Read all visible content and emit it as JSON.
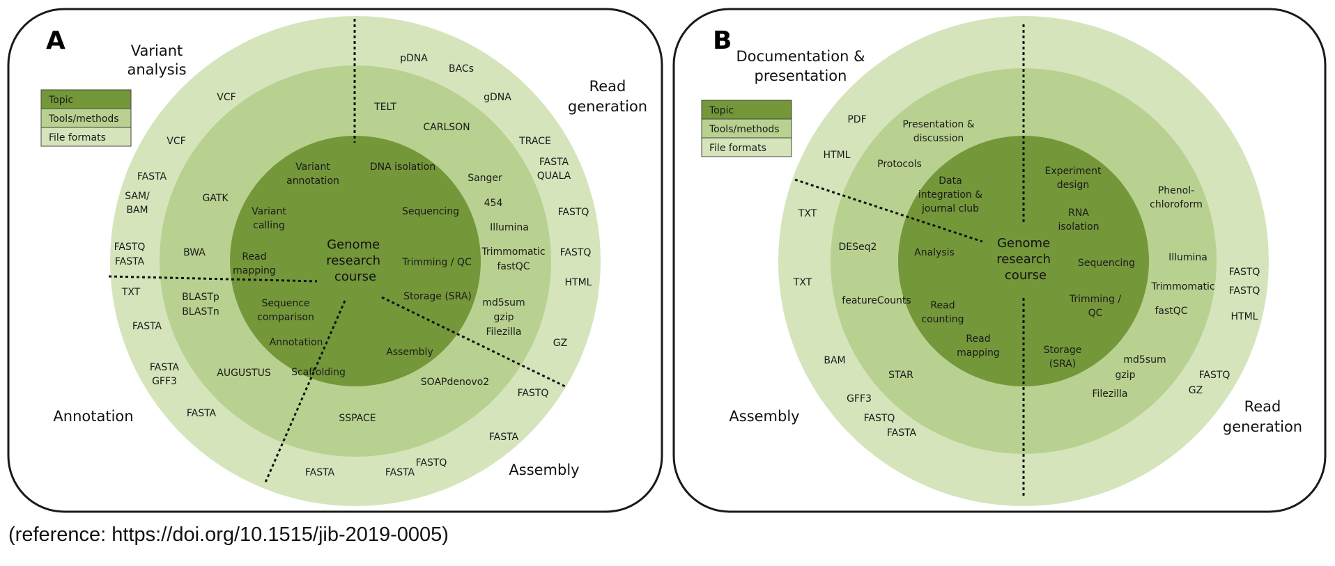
{
  "colors": {
    "outer_ring": "#d5e4bb",
    "middle_ring": "#b9d190",
    "inner_core": "#74973a",
    "legend_topic": "#74973a",
    "legend_tools": "#b9d190",
    "legend_files": "#d5e4bb",
    "frame": "#1a1a1a"
  },
  "reference": "(reference: https://doi.org/10.1515/jib-2019-0005)",
  "panels": [
    {
      "letter": "A",
      "center_label": [
        "Genome",
        "research",
        "course"
      ],
      "legend": [
        "Topic",
        "Tools/methods",
        "File formats"
      ],
      "sectors": [
        [
          "Variant",
          "analysis"
        ],
        [
          "Read",
          "generation"
        ],
        [
          "Annotation"
        ],
        [
          "Assembly"
        ]
      ],
      "topics": [
        [
          "Variant",
          "annotation"
        ],
        [
          "DNA isolation"
        ],
        [
          "Variant",
          "calling"
        ],
        [
          "Sequencing"
        ],
        [
          "Read",
          "mapping"
        ],
        [
          "Trimming / QC"
        ],
        [
          "Sequence",
          "comparison"
        ],
        [
          "Storage (SRA)"
        ],
        [
          "Annotation"
        ],
        [
          "Assembly"
        ],
        [
          "Scaffolding"
        ]
      ],
      "tools": [
        [
          "TELT"
        ],
        [
          "CARLSON"
        ],
        [
          "Sanger"
        ],
        [
          "454"
        ],
        [
          "Illumina"
        ],
        [
          "Trimmomatic",
          "fastQC"
        ],
        [
          "md5sum",
          "gzip",
          "Filezilla"
        ],
        [
          "SOAPdenovo2"
        ],
        [
          "SSPACE"
        ],
        [
          "AUGUSTUS"
        ],
        [
          "BLASTp",
          "BLASTn"
        ],
        [
          "BWA"
        ],
        [
          "GATK"
        ]
      ],
      "file_formats": [
        [
          "pDNA"
        ],
        [
          "BACs"
        ],
        [
          "gDNA"
        ],
        [
          "TRACE"
        ],
        [
          "FASTA",
          "QUALA"
        ],
        [
          "FASTQ"
        ],
        [
          "FASTQ"
        ],
        [
          "HTML"
        ],
        [
          "GZ"
        ],
        [
          "FASTQ"
        ],
        [
          "FASTA"
        ],
        [
          "FASTQ"
        ],
        [
          "FASTA"
        ],
        [
          "FASTA"
        ],
        [
          "FASTA"
        ],
        [
          "FASTA",
          "GFF3"
        ],
        [
          "FASTA"
        ],
        [
          "TXT"
        ],
        [
          "FASTQ",
          "FASTA"
        ],
        [
          "SAM/",
          "BAM"
        ],
        [
          "FASTA"
        ],
        [
          "VCF"
        ],
        [
          "VCF"
        ]
      ]
    },
    {
      "letter": "B",
      "center_label": [
        "Genome",
        "research",
        "course"
      ],
      "legend": [
        "Topic",
        "Tools/methods",
        "File formats"
      ],
      "sectors": [
        [
          "Documentation &",
          "presentation"
        ],
        [
          "Assembly"
        ],
        [
          "Read",
          "generation"
        ]
      ],
      "topics": [
        [
          "Data",
          "integration &",
          "journal club"
        ],
        [
          "Experiment",
          "design"
        ],
        [
          "RNA",
          "isolation"
        ],
        [
          "Sequencing"
        ],
        [
          "Trimming /",
          "QC"
        ],
        [
          "Storage",
          "(SRA)"
        ],
        [
          "Read",
          "mapping"
        ],
        [
          "Read",
          "counting"
        ],
        [
          "Analysis"
        ]
      ],
      "tools": [
        [
          "Presentation &",
          "discussion"
        ],
        [
          "Protocols"
        ],
        [
          "DESeq2"
        ],
        [
          "featureCounts"
        ],
        [
          "STAR"
        ],
        [
          "Phenol-",
          "chloroform"
        ],
        [
          "Illumina"
        ],
        [
          "Trimmomatic"
        ],
        [
          "fastQC"
        ],
        [
          "md5sum"
        ],
        [
          "gzip"
        ],
        [
          "Filezilla"
        ]
      ],
      "file_formats": [
        [
          "PDF"
        ],
        [
          "HTML"
        ],
        [
          "TXT"
        ],
        [
          "TXT"
        ],
        [
          "BAM"
        ],
        [
          "GFF3"
        ],
        [
          "FASTQ"
        ],
        [
          "FASTA"
        ],
        [
          "FASTQ",
          "FASTQ"
        ],
        [
          "HTML"
        ],
        [
          "FASTQ"
        ],
        [
          "GZ"
        ]
      ]
    }
  ]
}
